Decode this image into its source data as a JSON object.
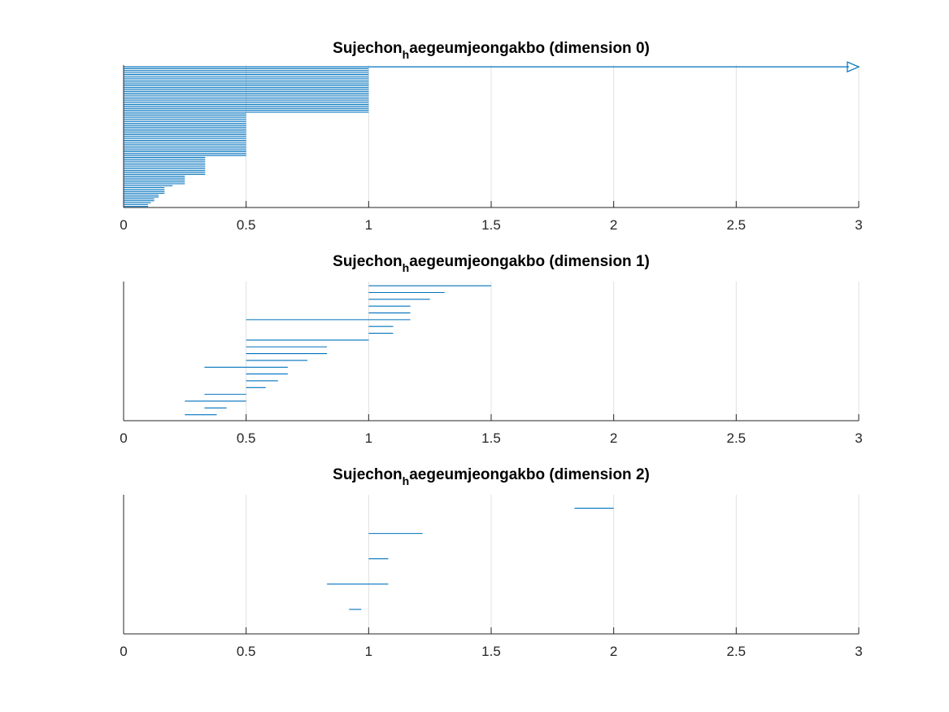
{
  "figure": {
    "background": "#ffffff",
    "bar_color": "#0072BD",
    "axis_color": "#262626",
    "grid_color": "#e0e0e0"
  },
  "chart_data": [
    {
      "type": "barcode",
      "title_main": "Sujechon",
      "title_sub": "h",
      "title_rest": "aegeumjeongakbo (dimension 0)",
      "xlim": [
        0,
        3
      ],
      "xticks": [
        0,
        0.5,
        1,
        1.5,
        2,
        2.5,
        3
      ],
      "xtick_labels": [
        "0",
        "0.5",
        "1",
        "1.5",
        "2",
        "2.5",
        "3"
      ],
      "grid": "x",
      "infinite_bar": {
        "birth": 0,
        "death": "Inf"
      },
      "bars": [
        [
          0,
          1
        ],
        [
          0,
          1
        ],
        [
          0,
          1
        ],
        [
          0,
          1
        ],
        [
          0,
          1
        ],
        [
          0,
          1
        ],
        [
          0,
          1
        ],
        [
          0,
          1
        ],
        [
          0,
          1
        ],
        [
          0,
          1
        ],
        [
          0,
          1
        ],
        [
          0,
          1
        ],
        [
          0,
          1
        ],
        [
          0,
          1
        ],
        [
          0,
          1
        ],
        [
          0,
          1
        ],
        [
          0,
          1
        ],
        [
          0,
          1
        ],
        [
          0,
          1
        ],
        [
          0,
          1
        ],
        [
          0,
          1
        ],
        [
          0,
          1
        ],
        [
          0,
          1
        ],
        [
          0,
          1
        ],
        [
          0,
          0.5
        ],
        [
          0,
          0.5
        ],
        [
          0,
          0.5
        ],
        [
          0,
          0.5
        ],
        [
          0,
          0.5
        ],
        [
          0,
          0.5
        ],
        [
          0,
          0.5
        ],
        [
          0,
          0.5
        ],
        [
          0,
          0.5
        ],
        [
          0,
          0.5
        ],
        [
          0,
          0.5
        ],
        [
          0,
          0.5
        ],
        [
          0,
          0.5
        ],
        [
          0,
          0.5
        ],
        [
          0,
          0.5
        ],
        [
          0,
          0.5
        ],
        [
          0,
          0.5
        ],
        [
          0,
          0.5
        ],
        [
          0,
          0.5
        ],
        [
          0,
          0.5
        ],
        [
          0,
          0.5
        ],
        [
          0,
          0.5
        ],
        [
          0,
          0.5
        ],
        [
          0,
          0.333
        ],
        [
          0,
          0.333
        ],
        [
          0,
          0.333
        ],
        [
          0,
          0.333
        ],
        [
          0,
          0.333
        ],
        [
          0,
          0.333
        ],
        [
          0,
          0.333
        ],
        [
          0,
          0.333
        ],
        [
          0,
          0.333
        ],
        [
          0,
          0.333
        ],
        [
          0,
          0.25
        ],
        [
          0,
          0.25
        ],
        [
          0,
          0.25
        ],
        [
          0,
          0.25
        ],
        [
          0,
          0.25
        ],
        [
          0,
          0.2
        ],
        [
          0,
          0.167
        ],
        [
          0,
          0.167
        ],
        [
          0,
          0.167
        ],
        [
          0,
          0.167
        ],
        [
          0,
          0.143
        ],
        [
          0,
          0.143
        ],
        [
          0,
          0.125
        ],
        [
          0,
          0.125
        ],
        [
          0,
          0.111
        ],
        [
          0,
          0.1
        ],
        [
          0,
          0.1
        ]
      ]
    },
    {
      "type": "barcode",
      "title_main": "Sujechon",
      "title_sub": "h",
      "title_rest": "aegeumjeongakbo (dimension 1)",
      "xlim": [
        0,
        3
      ],
      "xticks": [
        0,
        0.5,
        1,
        1.5,
        2,
        2.5,
        3
      ],
      "xtick_labels": [
        "0",
        "0.5",
        "1",
        "1.5",
        "2",
        "2.5",
        "3"
      ],
      "grid": "x",
      "bars": [
        [
          1,
          1.5
        ],
        [
          1,
          1.31
        ],
        [
          1,
          1.25
        ],
        [
          1,
          1.17
        ],
        [
          1,
          1.17
        ],
        [
          0.5,
          1.17
        ],
        [
          1,
          1.1
        ],
        [
          1,
          1.1
        ],
        [
          0.5,
          1
        ],
        [
          0.5,
          0.83
        ],
        [
          0.5,
          0.83
        ],
        [
          0.5,
          0.75
        ],
        [
          0.33,
          0.67
        ],
        [
          0.5,
          0.67
        ],
        [
          0.5,
          0.63
        ],
        [
          0.5,
          0.58
        ],
        [
          0.33,
          0.5
        ],
        [
          0.25,
          0.5
        ],
        [
          0.33,
          0.42
        ],
        [
          0.25,
          0.38
        ]
      ]
    },
    {
      "type": "barcode",
      "title_main": "Sujechon",
      "title_sub": "h",
      "title_rest": "aegeumjeongakbo (dimension 2)",
      "xlim": [
        0,
        3
      ],
      "xticks": [
        0,
        0.5,
        1,
        1.5,
        2,
        2.5,
        3
      ],
      "xtick_labels": [
        "0",
        "0.5",
        "1",
        "1.5",
        "2",
        "2.5",
        "3"
      ],
      "grid": "x",
      "bars": [
        [
          1.84,
          2
        ],
        [
          1,
          1.22
        ],
        [
          1,
          1.08
        ],
        [
          0.83,
          1.08
        ],
        [
          0.92,
          0.97
        ]
      ]
    }
  ]
}
